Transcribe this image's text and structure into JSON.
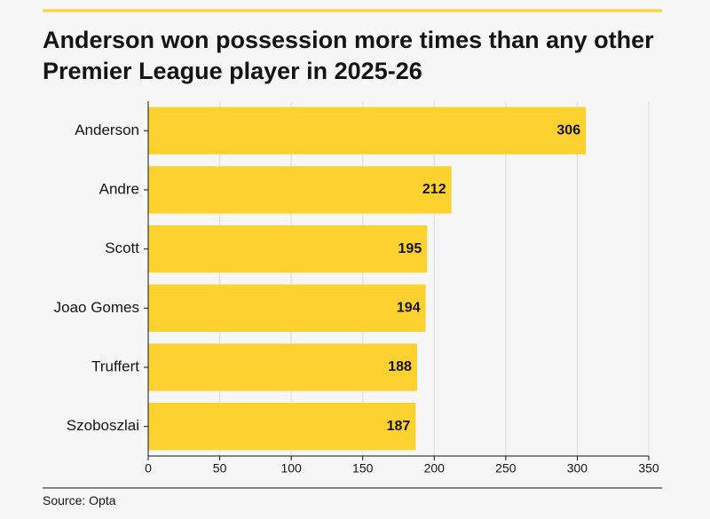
{
  "chart_data": {
    "type": "bar",
    "orientation": "horizontal",
    "title": "Anderson won possession more times than any other Premier League player in 2025-26",
    "source": "Source: Opta",
    "categories": [
      "Anderson",
      "Andre",
      "Scott",
      "Joao Gomes",
      "Truffert",
      "Szoboszlai"
    ],
    "values": [
      306,
      212,
      195,
      194,
      188,
      187
    ],
    "color": "#fdd22f",
    "xlim": [
      0,
      350
    ],
    "xticks": [
      0,
      50,
      100,
      150,
      200,
      250,
      300,
      350
    ],
    "grid": true
  }
}
